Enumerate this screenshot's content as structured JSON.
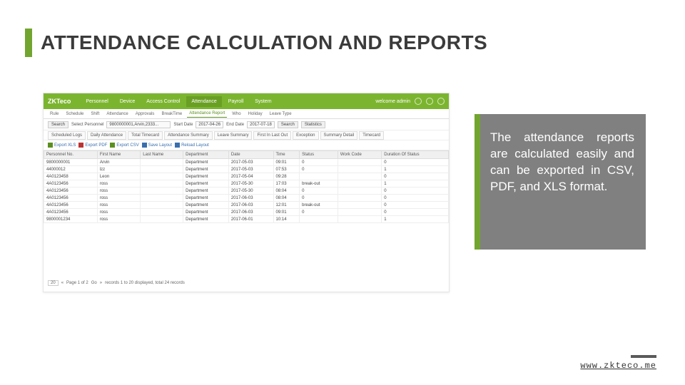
{
  "title": "ATTENDANCE CALCULATION AND REPORTS",
  "callout": "The attendance reports are calculated easily and can be exported in CSV, PDF, and XLS format.",
  "footer_url": "www.zkteco.me",
  "app": {
    "logo": "ZKTeco",
    "nav": [
      "Personnel",
      "Device",
      "Access Control",
      "Attendance",
      "Payroll",
      "System"
    ],
    "nav_active_index": 3,
    "top_right": "welcome admin",
    "subnav": [
      "Rule",
      "Schedule",
      "Shift",
      "Attendance",
      "Approvals",
      "BreakTime",
      "Attendance Report",
      "Who",
      "Holiday",
      "Leave Type"
    ],
    "subnav_active_index": 6,
    "filter": {
      "search_label": "Search",
      "select_label": "Select Personnel",
      "select_value": "9800000001,Arvin,2333...",
      "start_label": "Start Date",
      "start_value": "2017-04-26",
      "end_label": "End Date",
      "end_value": "2017-07-18",
      "search_btn": "Search",
      "stat_btn": "Statistics"
    },
    "tabs": [
      "Scheduled Logs",
      "Daily Attendance",
      "Total Timecard",
      "Attendance Summary",
      "Leave Summary",
      "First In Last Out",
      "Exception",
      "Summary Detail",
      "Timecard"
    ],
    "export": [
      "Export XLS",
      "Export PDF",
      "Export CSV",
      "Save Layout",
      "Reload Layout"
    ],
    "columns": [
      "Personnel No.",
      "First Name",
      "Last Name",
      "Department",
      "Date",
      "Time",
      "Status",
      "Work Code",
      "Duration Of Status"
    ],
    "rows": [
      [
        "9800000001",
        "Arvin",
        "",
        "Department",
        "2017-05-03",
        "09:01",
        "0",
        "",
        "0"
      ],
      [
        "44000012",
        "lzz",
        "",
        "Department",
        "2017-05-03",
        "07:53",
        "0",
        "",
        "1"
      ],
      [
        "4A0123458",
        "Leon",
        "",
        "Department",
        "2017-05-04",
        "09:28",
        "",
        "",
        "0"
      ],
      [
        "4A0123456",
        "ross",
        "",
        "Department",
        "2017-05-30",
        "17:03",
        "break-out",
        "",
        "1"
      ],
      [
        "4A0123456",
        "ross",
        "",
        "Department",
        "2017-05-30",
        "08:04",
        "0",
        "",
        "0"
      ],
      [
        "4A0123456",
        "ross",
        "",
        "Department",
        "2017-06-03",
        "08:04",
        "0",
        "",
        "0"
      ],
      [
        "4A0123456",
        "ross",
        "",
        "Department",
        "2017-06-03",
        "12:01",
        "break-out",
        "",
        "0"
      ],
      [
        "4A0123456",
        "ross",
        "",
        "Department",
        "2017-06-03",
        "09:01",
        "0",
        "",
        "0"
      ],
      [
        "9800001234",
        "ross",
        "",
        "Department",
        "2017-06-01",
        "10:14",
        "",
        "",
        "1"
      ]
    ],
    "pager": {
      "per": "20",
      "page_label": "Page 1 of 2",
      "go": "Go",
      "summary": "records 1 to 20 displayed, total 24 records"
    }
  }
}
